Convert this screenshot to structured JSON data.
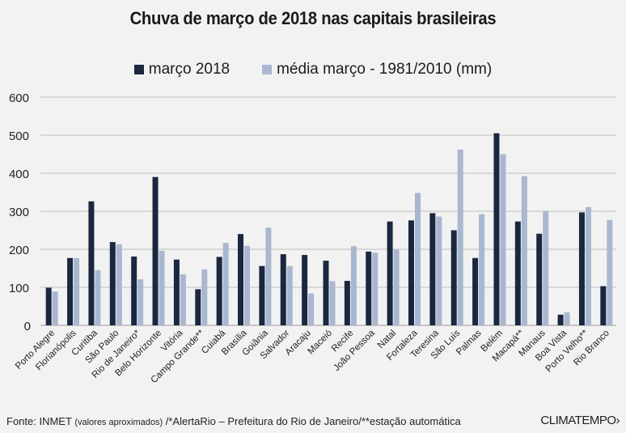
{
  "chart_data": {
    "type": "bar",
    "title": "Chuva de março de 2018 nas capitais brasileiras",
    "xlabel": "",
    "ylabel": "",
    "ylim": [
      0,
      600
    ],
    "yticks": [
      0,
      100,
      200,
      300,
      400,
      500,
      600
    ],
    "grid": true,
    "legend_position": "top-center",
    "categories": [
      "Porto Alegre",
      "Florianópolis",
      "Curitiba",
      "São Paulo",
      "Rio de Janeiro*",
      "Belo Horizonte",
      "Vitória",
      "Campo Grande**",
      "Cuiabá",
      "Brasília",
      "Goiânia",
      "Salvador",
      "Aracaju",
      "Maceió",
      "Recife",
      "João Pessoa",
      "Natal",
      "Fortaleza",
      "Teresina",
      "São Luís",
      "Palmas",
      "Belém",
      "Macapá**",
      "Manaus",
      "Boa Vista",
      "Porto Velho**",
      "Rio Branco"
    ],
    "series": [
      {
        "name": "março 2018",
        "color": "#1a2740",
        "values": [
          99,
          177,
          326,
          219,
          181,
          390,
          173,
          95,
          180,
          240,
          156,
          187,
          185,
          170,
          117,
          194,
          273,
          276,
          295,
          250,
          177,
          505,
          273,
          241,
          28,
          297,
          103
        ]
      },
      {
        "name": "média março - 1981/2010 (mm)",
        "color": "#a9b7d0",
        "values": [
          89,
          177,
          145,
          213,
          121,
          196,
          134,
          147,
          217,
          209,
          257,
          156,
          84,
          116,
          208,
          191,
          199,
          348,
          286,
          462,
          292,
          450,
          392,
          300,
          34,
          311,
          277
        ]
      }
    ]
  },
  "footer": {
    "source_label": "Fonte: INMET",
    "source_note": "(valores aproximados)",
    "source_rest": " /*AlertaRio – Prefeitura do Rio de Janeiro/**estação automática"
  },
  "logo": "CLIMATEMPO"
}
